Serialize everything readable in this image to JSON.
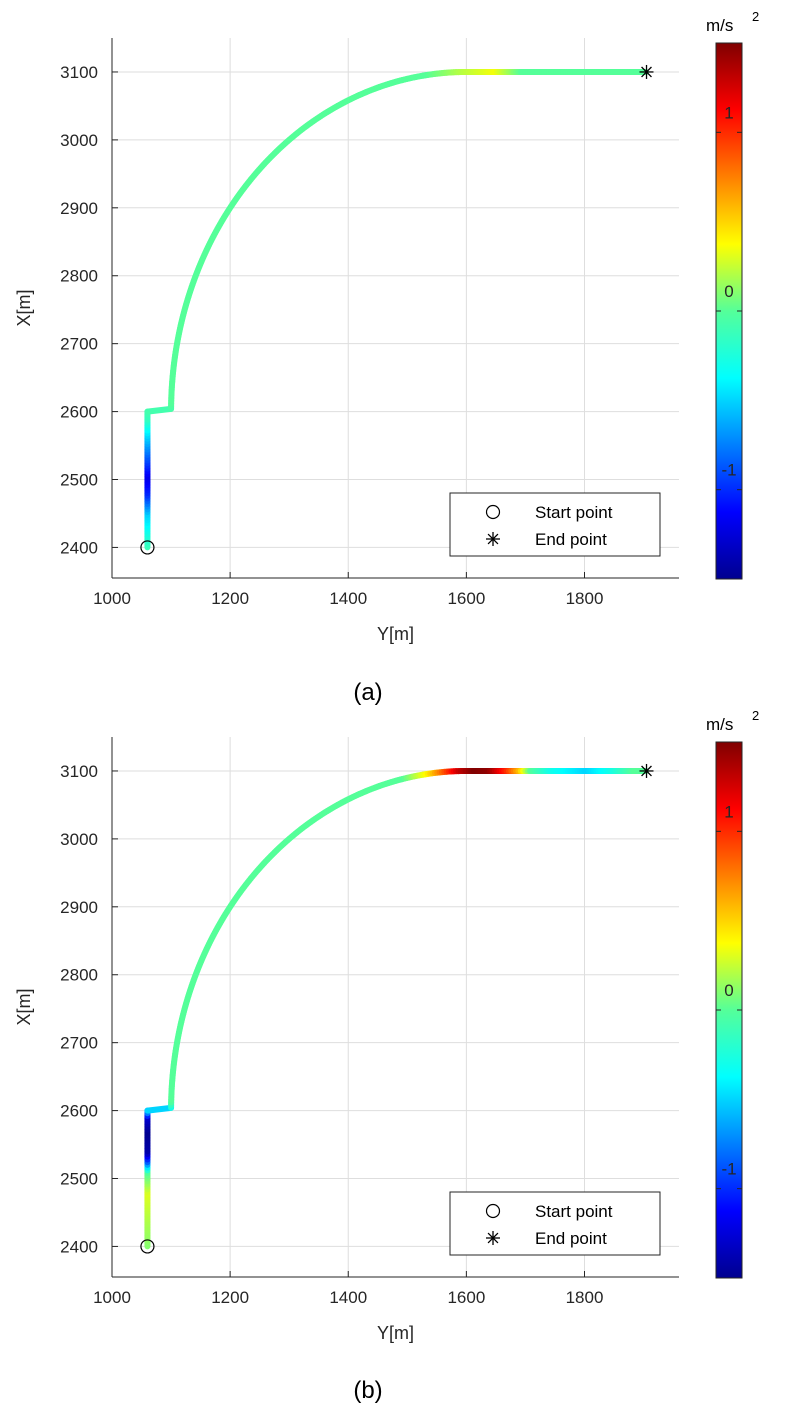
{
  "chart_data": [
    {
      "type": "line",
      "panel_label": "(a)",
      "xlabel": "Y[m]",
      "ylabel": "X[m]",
      "xlim": [
        1000,
        1960
      ],
      "ylim": [
        2355,
        3150
      ],
      "xticks": [
        1000,
        1200,
        1400,
        1600,
        1800
      ],
      "yticks": [
        2400,
        2500,
        2600,
        2700,
        2800,
        2900,
        3000,
        3100
      ],
      "grid": true,
      "colormap": "jet",
      "color_variable_unit_base": "m/s",
      "color_variable_unit_exp": "2",
      "clim": [
        -1.5,
        1.5
      ],
      "colorbar_ticks": [
        1,
        0,
        -1
      ],
      "legend_placement": "bottom-right",
      "legend": [
        {
          "marker": "circle",
          "label": "Start point"
        },
        {
          "marker": "asterisk",
          "label": "End point"
        }
      ],
      "start_point": {
        "y": 1060,
        "x": 2400
      },
      "end_point": {
        "y": 1905,
        "x": 3100
      },
      "trajectory": {
        "straight_end_x": 2600,
        "arc_center": {
          "y": 1600,
          "x": 2600
        },
        "arc_radius": 500,
        "final_y": 1905
      },
      "acceleration_profile": [
        {
          "s": 0,
          "a": -0.1
        },
        {
          "s": 50,
          "a": -0.5
        },
        {
          "s": 80,
          "a": -1.0
        },
        {
          "s": 105,
          "a": -1.2
        },
        {
          "s": 140,
          "a": -0.8
        },
        {
          "s": 165,
          "a": -0.5
        },
        {
          "s": 190,
          "a": -0.15
        },
        {
          "s": 215,
          "a": 0.0
        },
        {
          "s": 920,
          "a": 0.0
        },
        {
          "s": 975,
          "a": 0.2
        },
        {
          "s": 1035,
          "a": 0.35
        },
        {
          "s": 1080,
          "a": 0.0
        },
        {
          "s": 1350,
          "a": 0.0
        }
      ]
    },
    {
      "type": "line",
      "panel_label": "(b)",
      "xlabel": "Y[m]",
      "ylabel": "X[m]",
      "xlim": [
        1000,
        1960
      ],
      "ylim": [
        2355,
        3150
      ],
      "xticks": [
        1000,
        1200,
        1400,
        1600,
        1800
      ],
      "yticks": [
        2400,
        2500,
        2600,
        2700,
        2800,
        2900,
        3000,
        3100
      ],
      "grid": true,
      "colormap": "jet",
      "color_variable_unit_base": "m/s",
      "color_variable_unit_exp": "2",
      "clim": [
        -1.5,
        1.5
      ],
      "colorbar_ticks": [
        1,
        0,
        -1
      ],
      "legend_placement": "bottom-right",
      "legend": [
        {
          "marker": "circle",
          "label": "Start point"
        },
        {
          "marker": "asterisk",
          "label": "End point"
        }
      ],
      "start_point": {
        "y": 1060,
        "x": 2400
      },
      "end_point": {
        "y": 1905,
        "x": 3100
      },
      "trajectory": {
        "straight_end_x": 2600,
        "arc_center": {
          "y": 1600,
          "x": 2600
        },
        "arc_radius": 500,
        "final_y": 1905
      },
      "acceleration_profile": [
        {
          "s": 0,
          "a": 0.1
        },
        {
          "s": 80,
          "a": 0.3
        },
        {
          "s": 110,
          "a": 0.0
        },
        {
          "s": 125,
          "a": -0.8
        },
        {
          "s": 140,
          "a": -1.4
        },
        {
          "s": 170,
          "a": -1.5
        },
        {
          "s": 190,
          "a": -1.3
        },
        {
          "s": 205,
          "a": -0.3
        },
        {
          "s": 215,
          "a": 0.0
        },
        {
          "s": 880,
          "a": 0.0
        },
        {
          "s": 920,
          "a": 0.4
        },
        {
          "s": 945,
          "a": 0.8
        },
        {
          "s": 975,
          "a": 1.3
        },
        {
          "s": 1000,
          "a": 1.5
        },
        {
          "s": 1025,
          "a": 1.45
        },
        {
          "s": 1055,
          "a": 1.0
        },
        {
          "s": 1075,
          "a": 0.6
        },
        {
          "s": 1095,
          "a": 0.0
        },
        {
          "s": 1130,
          "a": -0.3
        },
        {
          "s": 1190,
          "a": -0.5
        },
        {
          "s": 1230,
          "a": -0.3
        },
        {
          "s": 1270,
          "a": 0.0
        },
        {
          "s": 1350,
          "a": 0.0
        }
      ]
    }
  ]
}
